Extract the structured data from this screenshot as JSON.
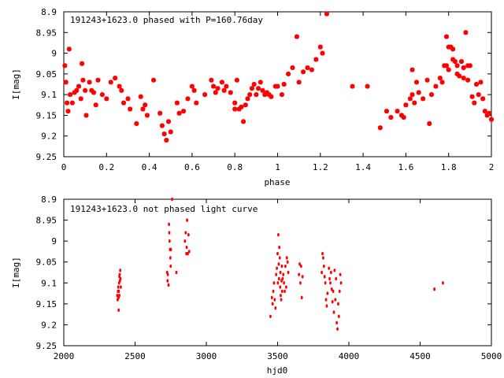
{
  "chart_data": [
    {
      "type": "scatter",
      "title": "191243+1623.0 phased with P=160.76day",
      "xlabel": "phase",
      "ylabel": "I[mag]",
      "xlim": [
        0,
        2
      ],
      "ylim": [
        8.9,
        9.25
      ],
      "y_inverted": true,
      "grid": false,
      "marker": "asterisk",
      "color": "#ff0000",
      "x_ticks": [
        "0",
        "0.2",
        "0.4",
        "0.6",
        "0.8",
        "1",
        "1.2",
        "1.4",
        "1.6",
        "1.8",
        "2"
      ],
      "y_ticks": [
        "8.9",
        "8.95",
        "9",
        "9.05",
        "9.1",
        "9.15",
        "9.2",
        "9.25"
      ],
      "points": [
        [
          0.005,
          9.03
        ],
        [
          0.01,
          9.07
        ],
        [
          0.015,
          9.12
        ],
        [
          0.02,
          9.14
        ],
        [
          0.025,
          8.99
        ],
        [
          0.03,
          9.1
        ],
        [
          0.04,
          9.12
        ],
        [
          0.05,
          9.095
        ],
        [
          0.06,
          9.09
        ],
        [
          0.07,
          9.08
        ],
        [
          0.08,
          9.11
        ],
        [
          0.085,
          9.025
        ],
        [
          0.09,
          9.065
        ],
        [
          0.1,
          9.09
        ],
        [
          0.105,
          9.15
        ],
        [
          0.12,
          9.07
        ],
        [
          0.13,
          9.09
        ],
        [
          0.14,
          9.095
        ],
        [
          0.15,
          9.125
        ],
        [
          0.16,
          9.065
        ],
        [
          0.18,
          9.1
        ],
        [
          0.2,
          9.11
        ],
        [
          0.22,
          9.07
        ],
        [
          0.24,
          9.06
        ],
        [
          0.26,
          9.08
        ],
        [
          0.27,
          9.09
        ],
        [
          0.28,
          9.12
        ],
        [
          0.3,
          9.11
        ],
        [
          0.31,
          9.135
        ],
        [
          0.34,
          9.17
        ],
        [
          0.36,
          9.105
        ],
        [
          0.37,
          9.135
        ],
        [
          0.39,
          9.15
        ],
        [
          0.38,
          9.125
        ],
        [
          0.42,
          9.065
        ],
        [
          0.45,
          9.145
        ],
        [
          0.46,
          9.175
        ],
        [
          0.47,
          9.195
        ],
        [
          0.48,
          9.21
        ],
        [
          0.49,
          9.165
        ],
        [
          0.5,
          9.19
        ],
        [
          0.53,
          9.12
        ],
        [
          0.54,
          9.145
        ],
        [
          0.56,
          9.14
        ],
        [
          0.58,
          9.11
        ],
        [
          0.6,
          9.08
        ],
        [
          0.61,
          9.09
        ],
        [
          0.62,
          9.12
        ],
        [
          0.66,
          9.1
        ],
        [
          0.69,
          9.065
        ],
        [
          0.7,
          9.08
        ],
        [
          0.71,
          9.095
        ],
        [
          0.72,
          9.085
        ],
        [
          0.74,
          9.07
        ],
        [
          0.75,
          9.09
        ],
        [
          0.76,
          9.08
        ],
        [
          0.78,
          9.095
        ],
        [
          0.8,
          9.12
        ],
        [
          0.8,
          9.135
        ],
        [
          0.81,
          9.065
        ],
        [
          0.82,
          9.135
        ],
        [
          0.83,
          9.13
        ],
        [
          0.84,
          9.165
        ],
        [
          0.85,
          9.125
        ],
        [
          0.86,
          9.11
        ],
        [
          0.87,
          9.1
        ],
        [
          0.88,
          9.085
        ],
        [
          0.89,
          9.075
        ],
        [
          0.9,
          9.1
        ],
        [
          0.91,
          9.085
        ],
        [
          0.92,
          9.07
        ],
        [
          0.93,
          9.09
        ],
        [
          0.94,
          9.1
        ],
        [
          0.95,
          9.095
        ],
        [
          0.96,
          9.1
        ],
        [
          0.97,
          9.105
        ],
        [
          0.99,
          9.08
        ],
        [
          1.0,
          9.08
        ],
        [
          1.02,
          9.1
        ],
        [
          1.03,
          9.075
        ],
        [
          1.05,
          9.05
        ],
        [
          1.07,
          9.035
        ],
        [
          1.09,
          8.96
        ],
        [
          1.1,
          9.07
        ],
        [
          1.12,
          9.045
        ],
        [
          1.14,
          9.035
        ],
        [
          1.16,
          9.04
        ],
        [
          1.18,
          9.015
        ],
        [
          1.2,
          8.985
        ],
        [
          1.21,
          9.0
        ],
        [
          1.23,
          8.905
        ],
        [
          1.35,
          9.08
        ],
        [
          1.42,
          9.08
        ],
        [
          1.48,
          9.18
        ],
        [
          1.51,
          9.14
        ],
        [
          1.53,
          9.155
        ],
        [
          1.56,
          9.14
        ],
        [
          1.58,
          9.15
        ],
        [
          1.59,
          9.155
        ],
        [
          1.6,
          9.125
        ],
        [
          1.62,
          9.11
        ],
        [
          1.63,
          9.04
        ],
        [
          1.63,
          9.1
        ],
        [
          1.64,
          9.12
        ],
        [
          1.65,
          9.07
        ],
        [
          1.66,
          9.095
        ],
        [
          1.68,
          9.11
        ],
        [
          1.7,
          9.065
        ],
        [
          1.71,
          9.17
        ],
        [
          1.72,
          9.1
        ],
        [
          1.74,
          9.08
        ],
        [
          1.76,
          9.06
        ],
        [
          1.77,
          9.07
        ],
        [
          1.78,
          9.03
        ],
        [
          1.79,
          8.96
        ],
        [
          1.79,
          9.03
        ],
        [
          1.8,
          8.985
        ],
        [
          1.8,
          9.04
        ],
        [
          1.81,
          8.985
        ],
        [
          1.82,
          8.99
        ],
        [
          1.82,
          9.015
        ],
        [
          1.83,
          9.02
        ],
        [
          1.84,
          9.03
        ],
        [
          1.84,
          9.05
        ],
        [
          1.85,
          9.055
        ],
        [
          1.86,
          9.02
        ],
        [
          1.87,
          9.035
        ],
        [
          1.87,
          9.06
        ],
        [
          1.88,
          8.95
        ],
        [
          1.89,
          9.065
        ],
        [
          1.89,
          9.03
        ],
        [
          1.9,
          9.03
        ],
        [
          1.91,
          9.105
        ],
        [
          1.92,
          9.12
        ],
        [
          1.93,
          9.075
        ],
        [
          1.94,
          9.1
        ],
        [
          1.95,
          9.07
        ],
        [
          1.96,
          9.11
        ],
        [
          1.97,
          9.14
        ],
        [
          1.98,
          9.15
        ],
        [
          1.99,
          9.145
        ],
        [
          2.0,
          9.16
        ]
      ]
    },
    {
      "type": "scatter",
      "title": "191243+1623.0 not phased light curve",
      "xlabel": "hjd0",
      "ylabel": "I[mag]",
      "xlim": [
        2000,
        5000
      ],
      "ylim": [
        8.9,
        9.25
      ],
      "y_inverted": true,
      "grid": false,
      "marker": "dot",
      "color": "#ff0000",
      "x_ticks": [
        "2000",
        "2500",
        "3000",
        "3500",
        "4000",
        "4500",
        "5000"
      ],
      "y_ticks": [
        "8.9",
        "8.95",
        "9",
        "9.05",
        "9.1",
        "9.15",
        "9.2",
        "9.25"
      ],
      "points": [
        [
          2375,
          9.13
        ],
        [
          2378,
          9.14
        ],
        [
          2380,
          9.12
        ],
        [
          2382,
          9.11
        ],
        [
          2384,
          9.135
        ],
        [
          2386,
          9.12
        ],
        [
          2388,
          9.1
        ],
        [
          2390,
          9.13
        ],
        [
          2392,
          9.08
        ],
        [
          2394,
          9.095
        ],
        [
          2396,
          9.07
        ],
        [
          2398,
          9.09
        ],
        [
          2400,
          9.11
        ],
        [
          2385,
          9.165
        ],
        [
          2390,
          9.085
        ],
        [
          2725,
          9.075
        ],
        [
          2728,
          9.095
        ],
        [
          2730,
          9.08
        ],
        [
          2735,
          9.105
        ],
        [
          2738,
          8.96
        ],
        [
          2740,
          8.98
        ],
        [
          2742,
          9.0
        ],
        [
          2745,
          9.02
        ],
        [
          2748,
          9.04
        ],
        [
          2750,
          9.06
        ],
        [
          2752,
          9.02
        ],
        [
          2760,
          8.9
        ],
        [
          2790,
          9.075
        ],
        [
          2850,
          9.0
        ],
        [
          2855,
          8.98
        ],
        [
          2860,
          9.03
        ],
        [
          2862,
          9.015
        ],
        [
          2865,
          8.95
        ],
        [
          2870,
          9.03
        ],
        [
          2875,
          8.985
        ],
        [
          2880,
          9.025
        ],
        [
          3450,
          9.18
        ],
        [
          3460,
          9.135
        ],
        [
          3465,
          9.15
        ],
        [
          3470,
          9.12
        ],
        [
          3475,
          9.1
        ],
        [
          3480,
          9.14
        ],
        [
          3485,
          9.16
        ],
        [
          3490,
          9.08
        ],
        [
          3495,
          9.065
        ],
        [
          3500,
          9.03
        ],
        [
          3502,
          9.1
        ],
        [
          3505,
          8.985
        ],
        [
          3508,
          9.055
        ],
        [
          3510,
          9.09
        ],
        [
          3512,
          9.015
        ],
        [
          3515,
          9.04
        ],
        [
          3518,
          9.11
        ],
        [
          3520,
          9.075
        ],
        [
          3522,
          9.13
        ],
        [
          3525,
          9.14
        ],
        [
          3528,
          9.095
        ],
        [
          3530,
          9.06
        ],
        [
          3532,
          9.12
        ],
        [
          3535,
          9.09
        ],
        [
          3540,
          9.08
        ],
        [
          3545,
          9.1
        ],
        [
          3550,
          9.12
        ],
        [
          3555,
          9.06
        ],
        [
          3560,
          9.11
        ],
        [
          3565,
          9.04
        ],
        [
          3570,
          9.05
        ],
        [
          3575,
          9.075
        ],
        [
          3650,
          9.08
        ],
        [
          3655,
          9.055
        ],
        [
          3660,
          9.1
        ],
        [
          3665,
          9.06
        ],
        [
          3670,
          9.135
        ],
        [
          3675,
          9.085
        ],
        [
          3810,
          9.075
        ],
        [
          3815,
          9.03
        ],
        [
          3820,
          9.04
        ],
        [
          3825,
          9.06
        ],
        [
          3830,
          9.085
        ],
        [
          3835,
          9.1
        ],
        [
          3840,
          9.14
        ],
        [
          3845,
          9.155
        ],
        [
          3850,
          9.125
        ],
        [
          3860,
          9.065
        ],
        [
          3865,
          9.09
        ],
        [
          3870,
          9.1
        ],
        [
          3875,
          9.075
        ],
        [
          3880,
          9.115
        ],
        [
          3885,
          9.145
        ],
        [
          3890,
          9.12
        ],
        [
          3895,
          9.17
        ],
        [
          3900,
          9.07
        ],
        [
          3905,
          9.14
        ],
        [
          3910,
          9.09
        ],
        [
          3915,
          9.195
        ],
        [
          3920,
          9.21
        ],
        [
          3925,
          9.15
        ],
        [
          3930,
          9.18
        ],
        [
          3935,
          9.12
        ],
        [
          3940,
          9.08
        ],
        [
          3945,
          9.1
        ],
        [
          4600,
          9.115
        ],
        [
          4660,
          9.1
        ]
      ]
    }
  ]
}
